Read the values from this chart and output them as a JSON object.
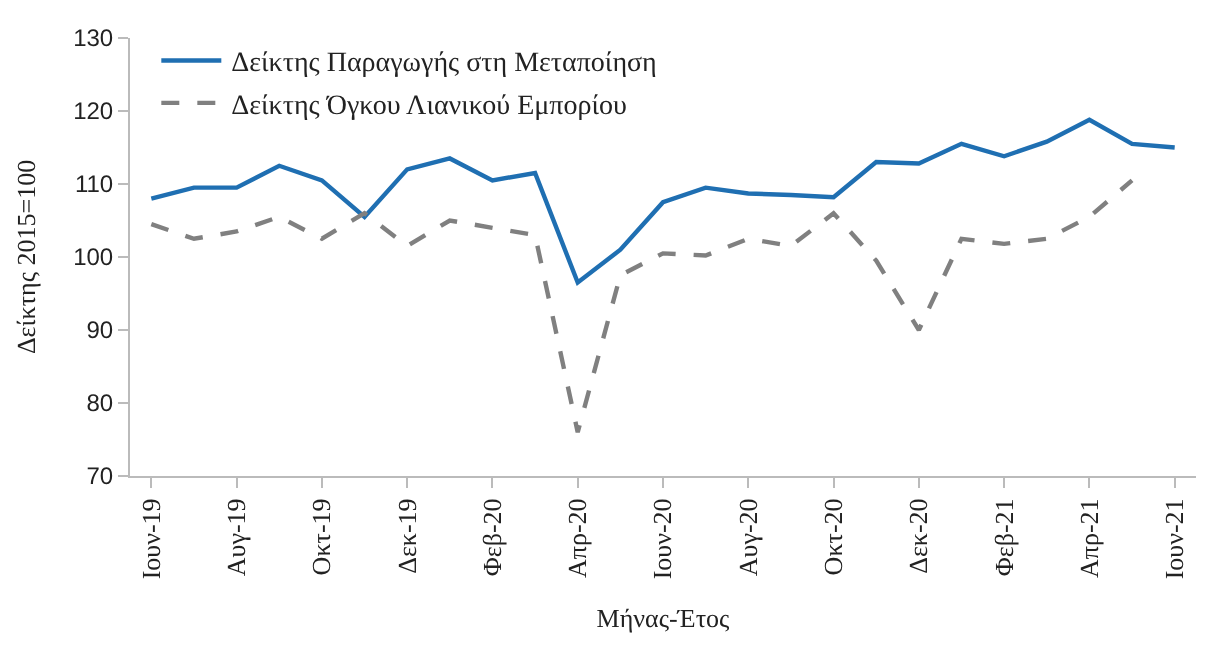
{
  "chart_data": {
    "type": "line",
    "xlabel": "Μήνας-Έτος",
    "ylabel": "Δείκτης 2015=100",
    "categories": [
      "Ιουν-19",
      null,
      "Αυγ-19",
      null,
      "Οκτ-19",
      null,
      "Δεκ-19",
      null,
      "Φεβ-20",
      null,
      "Απρ-20",
      null,
      "Ιουν-20",
      null,
      "Αυγ-20",
      null,
      "Οκτ-20",
      null,
      "Δεκ-20",
      null,
      "Φεβ-21",
      null,
      "Απρ-21",
      null,
      "Ιουν-21"
    ],
    "series": [
      {
        "name": "Δείκτης Παραγωγής στη Μεταποίηση",
        "color": "#1f6fb2",
        "line_style": "solid",
        "values": [
          108,
          109.5,
          109.5,
          112.5,
          110.5,
          105.5,
          112,
          113.5,
          110.5,
          111.5,
          96.5,
          101,
          107.5,
          109.5,
          108.7,
          108.5,
          108.2,
          113,
          112.8,
          115.5,
          113.8,
          115.8,
          118.8,
          115.5,
          115
        ]
      },
      {
        "name": "Δείκτης Όγκου Λιανικού Εμπορίου",
        "color": "#808080",
        "line_style": "dashed",
        "values": [
          104.5,
          102.5,
          103.5,
          105.5,
          102.5,
          106,
          101.5,
          105,
          104,
          103,
          76,
          97.5,
          100.5,
          100.2,
          102.5,
          101.5,
          106,
          99.5,
          90,
          102.5,
          101.8,
          102.5,
          105.5,
          110.5,
          null
        ]
      }
    ],
    "ylim": [
      70,
      130
    ],
    "yticks": [
      70,
      80,
      90,
      100,
      110,
      120,
      130
    ],
    "legend": "top left",
    "marker": "none"
  }
}
